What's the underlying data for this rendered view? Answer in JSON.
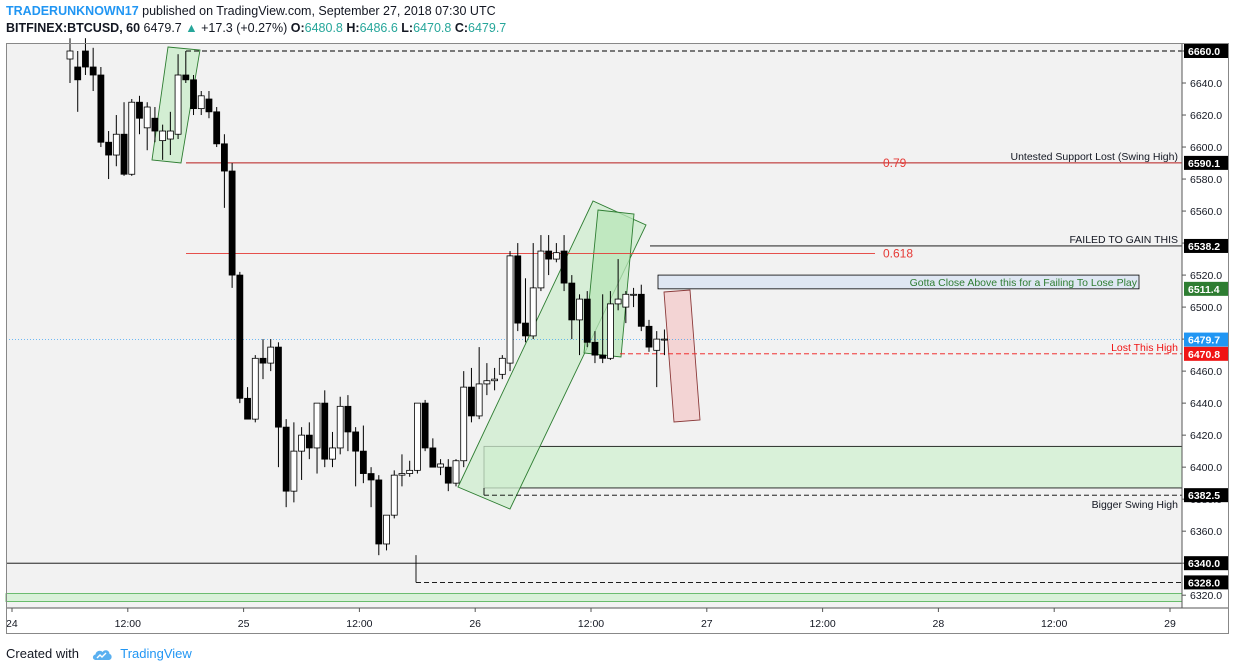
{
  "header": {
    "author": "TRADERUNKNOWN17",
    "published": "published on TradingView.com, September 27, 2018 07:30 UTC",
    "symbol": "BITFINEX:BTCUSD, 60",
    "last": "6479.7",
    "change_arrow": "▲",
    "change": "+17.3 (+0.27%)",
    "o_label": "O:",
    "o_val": "6480.8",
    "h_label": "H:",
    "h_val": "6486.6",
    "l_label": "L:",
    "l_val": "6470.8",
    "c_label": "C:",
    "c_val": "6479.7"
  },
  "footer": {
    "created_with": "Created with",
    "brand": "TradingView"
  },
  "colors": {
    "bull": "#ffffff",
    "bear": "#000000",
    "accent": "#2196f3",
    "lastPrice": "#2196f3",
    "alert": "#f01414",
    "green": "#4caf50"
  },
  "chart_data": {
    "type": "candlestick",
    "ylim": [
      6312,
      6665
    ],
    "x_tick_labels": [
      "24",
      "12:00",
      "25",
      "12:00",
      "26",
      "12:00",
      "27",
      "12:00",
      "28",
      "12:00",
      "29"
    ],
    "y_tick_labels": [
      "6660.0",
      "6640.0",
      "6620.0",
      "6600.0",
      "6580.0",
      "6560.0",
      "6540.0",
      "6520.0",
      "6500.0",
      "6480.0",
      "6460.0",
      "6440.0",
      "6420.0",
      "6400.0",
      "6380.0",
      "6360.0",
      "6340.0",
      "6320.0"
    ],
    "candles": [
      {
        "i": 0,
        "o": 6655,
        "h": 6668,
        "l": 6640,
        "c": 6660
      },
      {
        "i": 1,
        "o": 6650,
        "h": 6660,
        "l": 6622,
        "c": 6642
      },
      {
        "i": 2,
        "o": 6660,
        "h": 6668,
        "l": 6645,
        "c": 6650
      },
      {
        "i": 3,
        "o": 6650,
        "h": 6662,
        "l": 6635,
        "c": 6645
      },
      {
        "i": 4,
        "o": 6645,
        "h": 6650,
        "l": 6600,
        "c": 6603
      },
      {
        "i": 5,
        "o": 6603,
        "h": 6610,
        "l": 6580,
        "c": 6595
      },
      {
        "i": 6,
        "o": 6595,
        "h": 6620,
        "l": 6588,
        "c": 6608
      },
      {
        "i": 7,
        "o": 6608,
        "h": 6628,
        "l": 6582,
        "c": 6583
      },
      {
        "i": 8,
        "o": 6583,
        "h": 6630,
        "l": 6582,
        "c": 6628
      },
      {
        "i": 9,
        "o": 6628,
        "h": 6632,
        "l": 6608,
        "c": 6618
      },
      {
        "i": 10,
        "o": 6612,
        "h": 6628,
        "l": 6598,
        "c": 6625
      },
      {
        "i": 11,
        "o": 6618,
        "h": 6625,
        "l": 6603,
        "c": 6610
      },
      {
        "i": 12,
        "o": 6604,
        "h": 6614,
        "l": 6592,
        "c": 6610
      },
      {
        "i": 13,
        "o": 6605,
        "h": 6622,
        "l": 6595,
        "c": 6610
      },
      {
        "i": 14,
        "o": 6608,
        "h": 6658,
        "l": 6605,
        "c": 6645
      },
      {
        "i": 15,
        "o": 6645,
        "h": 6660,
        "l": 6640,
        "c": 6642
      },
      {
        "i": 16,
        "o": 6642,
        "h": 6645,
        "l": 6620,
        "c": 6624
      },
      {
        "i": 17,
        "o": 6624,
        "h": 6635,
        "l": 6620,
        "c": 6632
      },
      {
        "i": 18,
        "o": 6630,
        "h": 6635,
        "l": 6618,
        "c": 6622
      },
      {
        "i": 19,
        "o": 6622,
        "h": 6625,
        "l": 6600,
        "c": 6602
      },
      {
        "i": 20,
        "o": 6602,
        "h": 6608,
        "l": 6562,
        "c": 6585
      },
      {
        "i": 21,
        "o": 6585,
        "h": 6590,
        "l": 6512,
        "c": 6520
      },
      {
        "i": 22,
        "o": 6520,
        "h": 6522,
        "l": 6440,
        "c": 6443
      },
      {
        "i": 23,
        "o": 6443,
        "h": 6450,
        "l": 6430,
        "c": 6430
      },
      {
        "i": 24,
        "o": 6430,
        "h": 6470,
        "l": 6428,
        "c": 6468
      },
      {
        "i": 25,
        "o": 6468,
        "h": 6480,
        "l": 6455,
        "c": 6465
      },
      {
        "i": 26,
        "o": 6465,
        "h": 6480,
        "l": 6460,
        "c": 6475
      },
      {
        "i": 27,
        "o": 6475,
        "h": 6478,
        "l": 6400,
        "c": 6425
      },
      {
        "i": 28,
        "o": 6425,
        "h": 6430,
        "l": 6375,
        "c": 6385
      },
      {
        "i": 29,
        "o": 6385,
        "h": 6428,
        "l": 6378,
        "c": 6410
      },
      {
        "i": 30,
        "o": 6410,
        "h": 6425,
        "l": 6392,
        "c": 6420
      },
      {
        "i": 31,
        "o": 6420,
        "h": 6428,
        "l": 6405,
        "c": 6412
      },
      {
        "i": 32,
        "o": 6412,
        "h": 6440,
        "l": 6396,
        "c": 6440
      },
      {
        "i": 33,
        "o": 6440,
        "h": 6448,
        "l": 6400,
        "c": 6405
      },
      {
        "i": 34,
        "o": 6405,
        "h": 6422,
        "l": 6400,
        "c": 6412
      },
      {
        "i": 35,
        "o": 6412,
        "h": 6444,
        "l": 6408,
        "c": 6438
      },
      {
        "i": 36,
        "o": 6438,
        "h": 6445,
        "l": 6410,
        "c": 6422
      },
      {
        "i": 37,
        "o": 6422,
        "h": 6425,
        "l": 6388,
        "c": 6410
      },
      {
        "i": 38,
        "o": 6410,
        "h": 6426,
        "l": 6390,
        "c": 6396
      },
      {
        "i": 39,
        "o": 6396,
        "h": 6400,
        "l": 6375,
        "c": 6392
      },
      {
        "i": 40,
        "o": 6392,
        "h": 6395,
        "l": 6345,
        "c": 6352
      },
      {
        "i": 41,
        "o": 6352,
        "h": 6370,
        "l": 6348,
        "c": 6370
      },
      {
        "i": 42,
        "o": 6370,
        "h": 6398,
        "l": 6368,
        "c": 6395
      },
      {
        "i": 43,
        "o": 6395,
        "h": 6408,
        "l": 6388,
        "c": 6396
      },
      {
        "i": 44,
        "o": 6396,
        "h": 6404,
        "l": 6394,
        "c": 6398
      },
      {
        "i": 45,
        "o": 6398,
        "h": 6440,
        "l": 6396,
        "c": 6440
      },
      {
        "i": 46,
        "o": 6440,
        "h": 6442,
        "l": 6410,
        "c": 6412
      },
      {
        "i": 47,
        "o": 6412,
        "h": 6418,
        "l": 6400,
        "c": 6400
      },
      {
        "i": 48,
        "o": 6400,
        "h": 6405,
        "l": 6395,
        "c": 6402
      },
      {
        "i": 49,
        "o": 6400,
        "h": 6405,
        "l": 6385,
        "c": 6390
      },
      {
        "i": 50,
        "o": 6390,
        "h": 6405,
        "l": 6388,
        "c": 6404
      },
      {
        "i": 51,
        "o": 6404,
        "h": 6460,
        "l": 6400,
        "c": 6450
      },
      {
        "i": 52,
        "o": 6450,
        "h": 6462,
        "l": 6428,
        "c": 6432
      },
      {
        "i": 53,
        "o": 6432,
        "h": 6475,
        "l": 6430,
        "c": 6452
      },
      {
        "i": 54,
        "o": 6452,
        "h": 6465,
        "l": 6445,
        "c": 6454
      },
      {
        "i": 55,
        "o": 6454,
        "h": 6462,
        "l": 6448,
        "c": 6455
      },
      {
        "i": 56,
        "o": 6458,
        "h": 6470,
        "l": 6455,
        "c": 6468
      },
      {
        "i": 57,
        "o": 6465,
        "h": 6535,
        "l": 6460,
        "c": 6532
      },
      {
        "i": 58,
        "o": 6532,
        "h": 6540,
        "l": 6485,
        "c": 6490
      },
      {
        "i": 59,
        "o": 6490,
        "h": 6518,
        "l": 6478,
        "c": 6482
      },
      {
        "i": 60,
        "o": 6482,
        "h": 6540,
        "l": 6480,
        "c": 6512
      },
      {
        "i": 61,
        "o": 6512,
        "h": 6545,
        "l": 6510,
        "c": 6535
      },
      {
        "i": 62,
        "o": 6535,
        "h": 6545,
        "l": 6520,
        "c": 6530
      },
      {
        "i": 63,
        "o": 6530,
        "h": 6540,
        "l": 6528,
        "c": 6534
      },
      {
        "i": 64,
        "o": 6535,
        "h": 6545,
        "l": 6510,
        "c": 6515
      },
      {
        "i": 65,
        "o": 6515,
        "h": 6520,
        "l": 6480,
        "c": 6492
      },
      {
        "i": 66,
        "o": 6492,
        "h": 6508,
        "l": 6470,
        "c": 6505
      },
      {
        "i": 67,
        "o": 6505,
        "h": 6510,
        "l": 6475,
        "c": 6478
      },
      {
        "i": 68,
        "o": 6478,
        "h": 6485,
        "l": 6465,
        "c": 6470
      },
      {
        "i": 69,
        "o": 6470,
        "h": 6508,
        "l": 6465,
        "c": 6468
      },
      {
        "i": 70,
        "o": 6468,
        "h": 6510,
        "l": 6467,
        "c": 6502
      },
      {
        "i": 71,
        "o": 6502,
        "h": 6530,
        "l": 6498,
        "c": 6505
      },
      {
        "i": 72,
        "o": 6500,
        "h": 6510,
        "l": 6490,
        "c": 6508
      },
      {
        "i": 73,
        "o": 6508,
        "h": 6512,
        "l": 6500,
        "c": 6508
      },
      {
        "i": 74,
        "o": 6508,
        "h": 6514,
        "l": 6485,
        "c": 6488
      },
      {
        "i": 75,
        "o": 6488,
        "h": 6492,
        "l": 6472,
        "c": 6475
      },
      {
        "i": 76,
        "o": 6473,
        "h": 6485,
        "l": 6450,
        "c": 6480
      },
      {
        "i": 77,
        "o": 6480,
        "h": 6486,
        "l": 6470,
        "c": 6480
      }
    ],
    "levels": [
      {
        "price": 6660,
        "style": "dashed",
        "color": "#000000",
        "label": ""
      },
      {
        "price": 6590.1,
        "style": "solid",
        "color": "#b71c1c",
        "label": "Untested Support Lost (Swing High)"
      },
      {
        "price": 6538.2,
        "style": "solid",
        "color": "#000000",
        "label": "FAILED TO GAIN THIS"
      },
      {
        "price": 6533.5,
        "style": "solid",
        "color": "#e53935",
        "label": ""
      },
      {
        "price": 6470.8,
        "style": "dashed",
        "color": "#f01414",
        "label": "Lost This High"
      },
      {
        "price": 6382.5,
        "style": "dashed",
        "color": "#000000",
        "label": "Bigger Swing High"
      },
      {
        "price": 6340.0,
        "style": "solid",
        "color": "#000000",
        "label": ""
      },
      {
        "price": 6328.0,
        "style": "dashed",
        "color": "#000000",
        "label": ""
      }
    ],
    "fib_labels": [
      {
        "price": 6590.1,
        "text": "0.79"
      },
      {
        "price": 6533.5,
        "text": "0.618"
      }
    ],
    "zones": [
      {
        "top": 6520,
        "bottom": 6511.4,
        "fill": "#dde6f3",
        "stroke": "#000000",
        "label": "Gotta Close Above this for a Failing To Lose Play"
      },
      {
        "top": 6413,
        "bottom": 6387,
        "fill": "#d6f1d6",
        "stroke": "#000000",
        "label": ""
      },
      {
        "top": 6321,
        "bottom": 6316,
        "fill": "#d6f1d6",
        "stroke": "#4caf50",
        "label": ""
      }
    ],
    "price_tags": [
      {
        "price": 6660.0,
        "text": "6660.0",
        "bg": "#000000",
        "fg": "#ffffff"
      },
      {
        "price": 6590.1,
        "text": "6590.1",
        "bg": "#000000",
        "fg": "#ffffff"
      },
      {
        "price": 6538.2,
        "text": "6538.2",
        "bg": "#000000",
        "fg": "#ffffff"
      },
      {
        "price": 6511.4,
        "text": "6511.4",
        "bg": "#2e7d32",
        "fg": "#ffffff"
      },
      {
        "price": 6479.7,
        "text": "6479.7",
        "bg": "#2196f3",
        "fg": "#ffffff"
      },
      {
        "price": 6470.8,
        "text": "6470.8",
        "bg": "#f01414",
        "fg": "#ffffff"
      },
      {
        "price": 6382.5,
        "text": "6382.5",
        "bg": "#000000",
        "fg": "#ffffff"
      },
      {
        "price": 6340.0,
        "text": "6340.0",
        "bg": "#000000",
        "fg": "#ffffff"
      },
      {
        "price": 6328.0,
        "text": "6328.0",
        "bg": "#000000",
        "fg": "#ffffff"
      }
    ]
  }
}
